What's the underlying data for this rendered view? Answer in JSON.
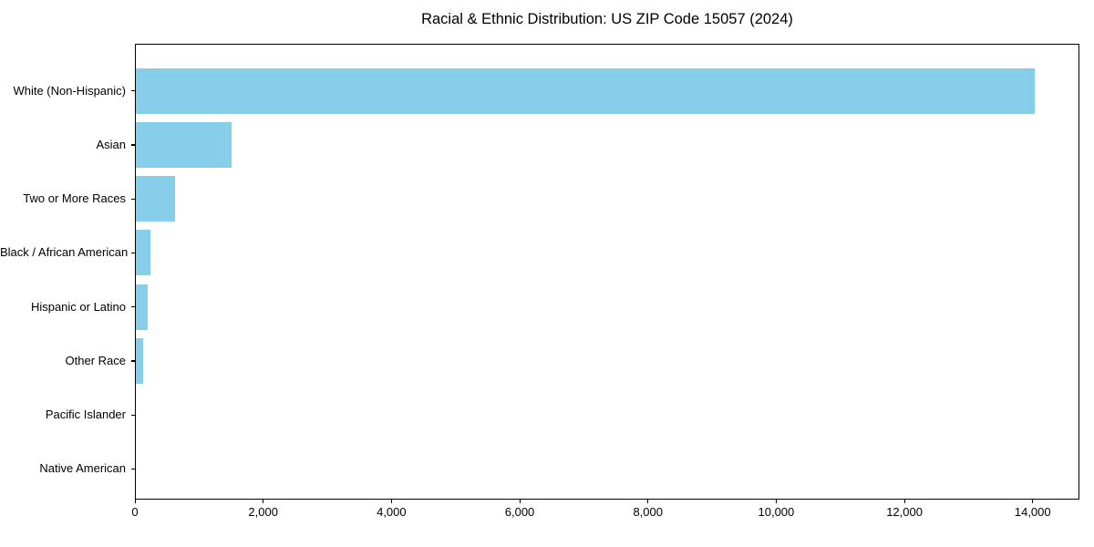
{
  "chart_data": {
    "type": "bar",
    "orientation": "horizontal",
    "title": "Racial & Ethnic Distribution: US ZIP Code 15057 (2024)",
    "xlabel": "",
    "ylabel": "",
    "categories": [
      "White (Non-Hispanic)",
      "Asian",
      "Two or More Races",
      "Black / African American",
      "Hispanic or Latino",
      "Other Race",
      "Pacific Islander",
      "Native American"
    ],
    "values": [
      14020,
      1490,
      610,
      225,
      190,
      115,
      0,
      0
    ],
    "xlim": [
      0,
      14700
    ],
    "x_ticks": [
      {
        "value": 0,
        "label": "0"
      },
      {
        "value": 2000,
        "label": "2,000"
      },
      {
        "value": 4000,
        "label": "4,000"
      },
      {
        "value": 6000,
        "label": "6,000"
      },
      {
        "value": 8000,
        "label": "8,000"
      },
      {
        "value": 10000,
        "label": "10,000"
      },
      {
        "value": 12000,
        "label": "12,000"
      },
      {
        "value": 14000,
        "label": "14,000"
      }
    ],
    "grid": false,
    "legend_position": "none",
    "bar_color": "#87CEEB",
    "background_color": "#FFFFFF",
    "text_color": "#000000",
    "axis_color": "#000000"
  }
}
